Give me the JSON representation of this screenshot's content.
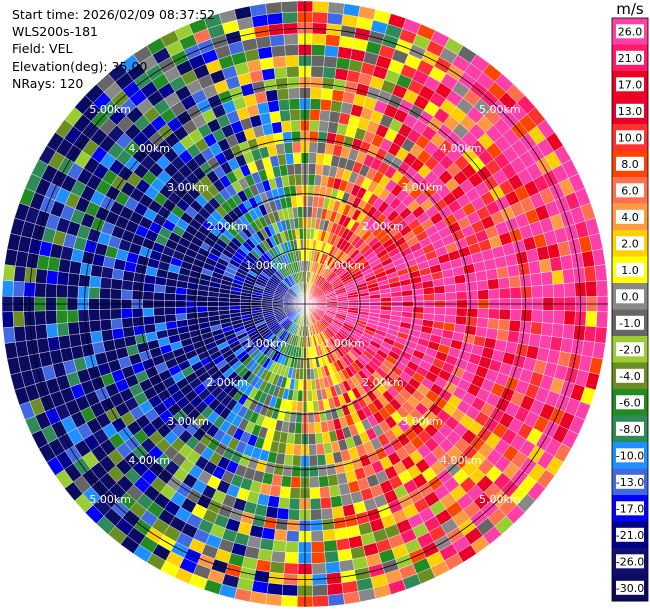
{
  "meta": {
    "start_time": "Start time: 2026/02/09 08:37:52",
    "instrument": "WLS200s-181",
    "field": "Field: VEL",
    "elevation": "Elevation(deg): 35.00",
    "nrays": "NRays: 120"
  },
  "chart_data": {
    "type": "heatmap",
    "projection": "polar-ppi",
    "field": "VEL",
    "units": "m/s",
    "n_rays": 120,
    "elevation_deg": 35.0,
    "range_rings_km": [
      1.0,
      2.0,
      3.0,
      4.0,
      5.0
    ],
    "range_ring_labels": [
      "1.00km",
      "2.00km",
      "3.00km",
      "4.00km",
      "5.00km"
    ],
    "max_range_km": 5.5,
    "colorbar": {
      "label": "m/s",
      "ticks": [
        "26.0",
        "21.0",
        "17.0",
        "13.0",
        "10.0",
        "8.0",
        "6.0",
        "4.0",
        "2.0",
        "1.0",
        "0.0",
        "-1.0",
        "-2.0",
        "-4.0",
        "-6.0",
        "-8.0",
        "-10.0",
        "-13.0",
        "-17.0",
        "-21.0",
        "-26.0",
        "-30.0"
      ],
      "colors": [
        "#ff3fa8",
        "#ff1a6a",
        "#ee0020",
        "#e8002a",
        "#ff3030",
        "#ff4400",
        "#ff7050",
        "#ff9a40",
        "#ffd000",
        "#ffff00",
        "#888888",
        "#666666",
        "#9acd32",
        "#6b8e23",
        "#228b22",
        "#2e8b57",
        "#1e90ff",
        "#4169e1",
        "#0000ff",
        "#00008b",
        "#101070",
        "#0a0a60"
      ]
    },
    "pattern": "approaching (negative) velocities on west side, receding (positive) on east side; noisy speckle beyond ~2 km"
  }
}
